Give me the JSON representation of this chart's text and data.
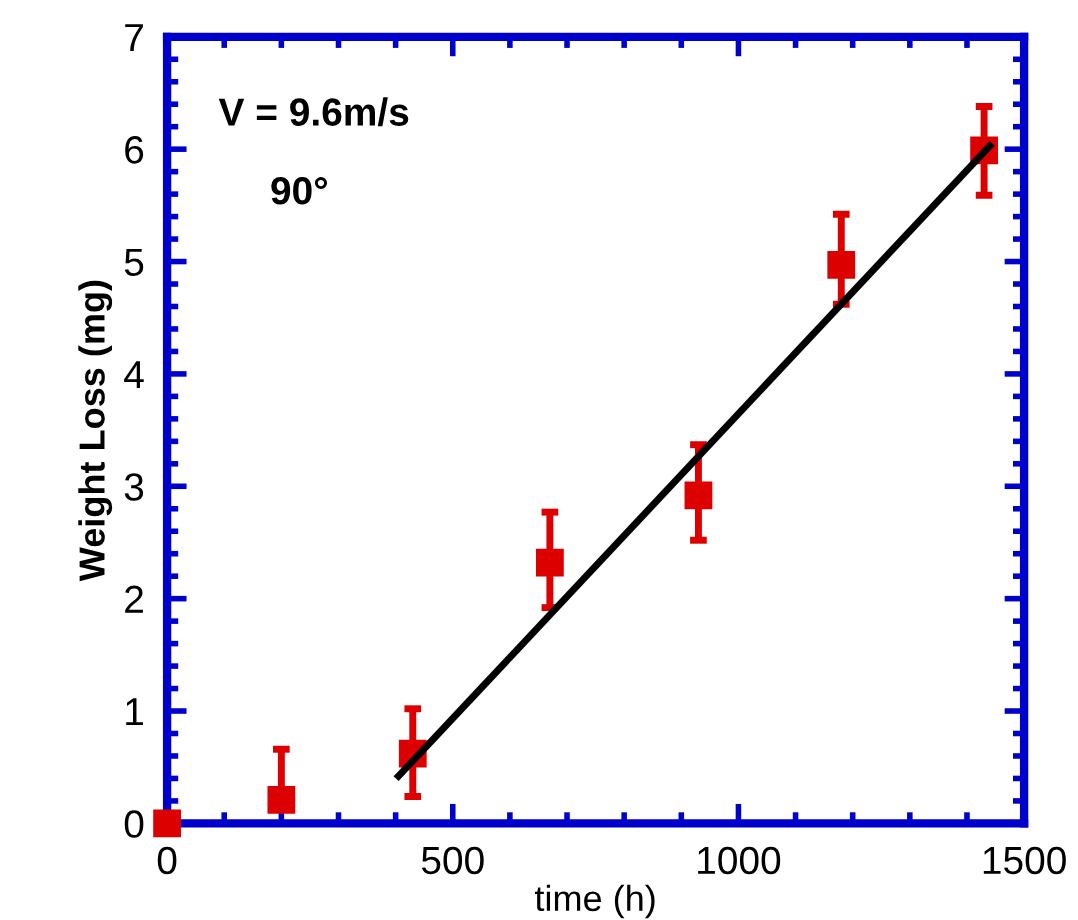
{
  "chart_data": {
    "type": "scatter",
    "xlabel": "time (h)",
    "ylabel": "Weight Loss (mg)",
    "xlim": [
      0,
      1500
    ],
    "xticks": [
      0,
      500,
      1000,
      1500
    ],
    "ylim": [
      0,
      7
    ],
    "yticks": [
      0,
      1,
      2,
      3,
      4,
      5,
      6,
      7
    ],
    "grid": false,
    "legend": false,
    "marker": "square",
    "annotations": [
      "V = 9.6m/s",
      "90°"
    ],
    "series": [
      {
        "color": "#dd0000",
        "x": [
          0,
          200,
          430,
          670,
          930,
          1180,
          1430
        ],
        "values": [
          0,
          0.21,
          0.62,
          2.32,
          2.92,
          4.97,
          5.99
        ],
        "errors": [
          null,
          [
            0.21,
            0.66
          ],
          [
            0.24,
            1.02
          ],
          [
            1.92,
            2.77
          ],
          [
            2.52,
            3.37
          ],
          [
            4.62,
            5.42
          ],
          [
            5.59,
            6.38
          ]
        ]
      },
      {
        "type": "line",
        "color": "#000000",
        "x": [
          405,
          1440
        ],
        "values": [
          0.42,
          6.03
        ],
        "marker": "none",
        "line_style": "solid"
      }
    ]
  }
}
